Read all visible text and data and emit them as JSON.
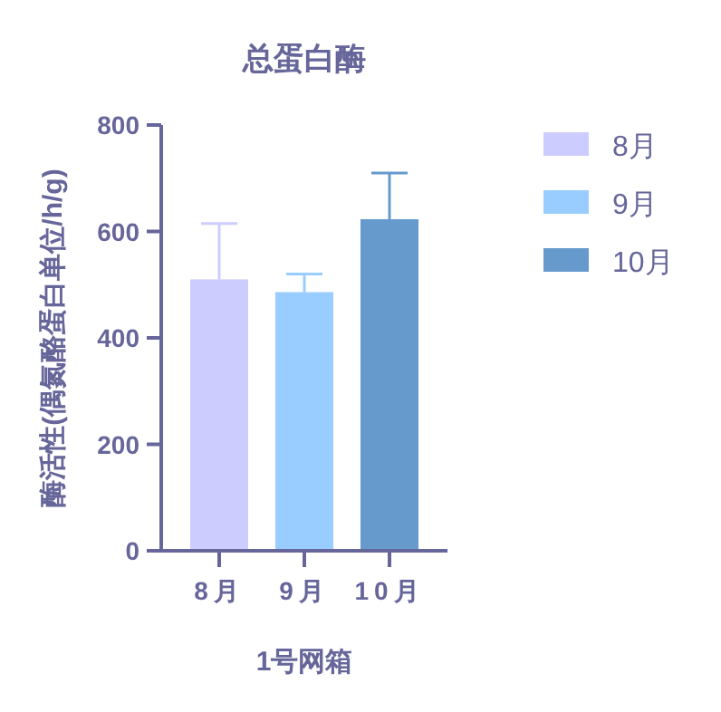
{
  "chart_data": {
    "type": "bar",
    "title": "总蛋白酶",
    "xlabel": "1号网箱",
    "ylabel": "酶活性(偶氮酪蛋白单位/h/g)",
    "categories": [
      "8月",
      "9月",
      "10月"
    ],
    "series": [
      {
        "name": "8月",
        "color": "#ccccff",
        "values": [
          510,
          null,
          null
        ],
        "errors": [
          [
            510,
            615
          ],
          null,
          null
        ]
      },
      {
        "name": "9月",
        "color": "#99ccff",
        "values": [
          null,
          486,
          null
        ],
        "errors": [
          null,
          [
            486,
            520
          ],
          null
        ]
      },
      {
        "name": "10月",
        "color": "#6699cc",
        "values": [
          null,
          null,
          623
        ],
        "errors": [
          null,
          null,
          [
            623,
            710
          ]
        ]
      }
    ],
    "ylim": [
      0,
      800
    ],
    "yticks": [
      0,
      200,
      400,
      600,
      800
    ],
    "grid": false,
    "legend": "top right"
  }
}
